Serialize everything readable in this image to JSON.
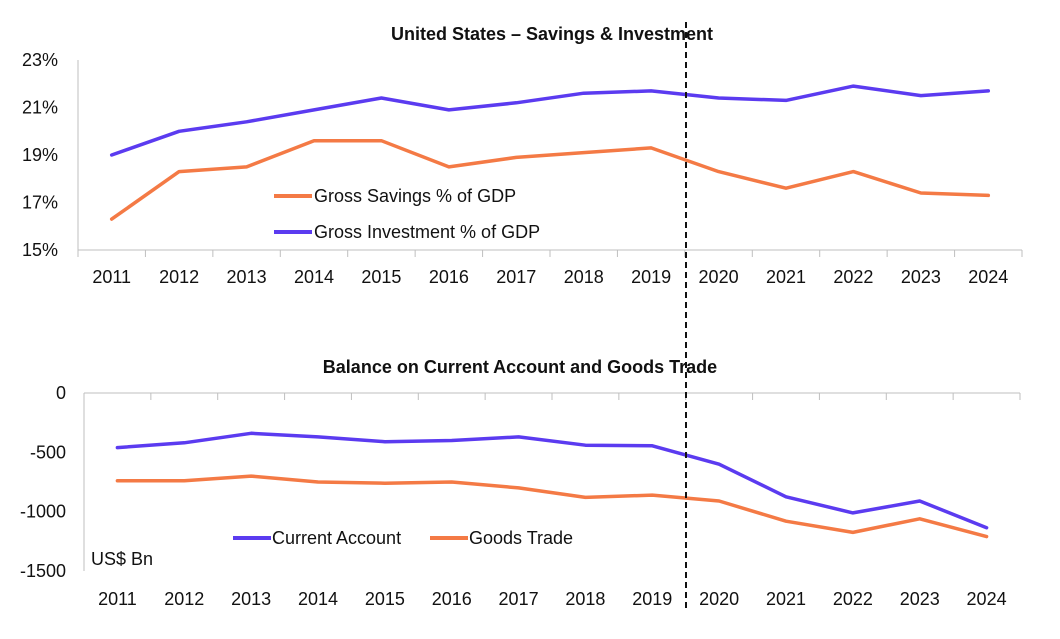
{
  "colors": {
    "savings": "#F47A45",
    "investment": "#5B3BF0",
    "divider": "#111111",
    "axis": "#BFBFBF"
  },
  "chart_data": [
    {
      "type": "line",
      "title": "United States – Savings & Investment",
      "x": [
        "2011",
        "2012",
        "2013",
        "2014",
        "2015",
        "2016",
        "2017",
        "2018",
        "2019",
        "2020",
        "2021",
        "2022",
        "2023",
        "2024"
      ],
      "ylim": [
        15,
        23
      ],
      "y_ticks": [
        15,
        17,
        19,
        21,
        23
      ],
      "y_tick_labels": [
        "15%",
        "17%",
        "19%",
        "21%",
        "23%"
      ],
      "grid": false,
      "legend_position": "center-left",
      "divider_after": "2019",
      "series": [
        {
          "name": "Gross Savings % of GDP",
          "color": "#F47A45",
          "values": [
            16.3,
            18.3,
            18.5,
            19.6,
            19.6,
            18.5,
            18.9,
            19.1,
            19.3,
            18.3,
            17.6,
            18.3,
            17.4,
            17.3
          ]
        },
        {
          "name": "Gross Investment % of GDP",
          "color": "#5B3BF0",
          "values": [
            19.0,
            20.0,
            20.4,
            20.9,
            21.4,
            20.9,
            21.2,
            21.6,
            21.7,
            21.4,
            21.3,
            21.9,
            21.5,
            21.7
          ]
        }
      ]
    },
    {
      "type": "line",
      "title": "Balance on Current Account and Goods Trade",
      "x": [
        "2011",
        "2012",
        "2013",
        "2014",
        "2015",
        "2016",
        "2017",
        "2018",
        "2019",
        "2020",
        "2021",
        "2022",
        "2023",
        "2024"
      ],
      "ylim": [
        -1500,
        0
      ],
      "y_ticks": [
        -1500,
        -1000,
        -500,
        0
      ],
      "y_tick_labels": [
        "-1500",
        "-1000",
        "-500",
        "0"
      ],
      "unit_label": "US$ Bn",
      "grid": false,
      "legend_position": "bottom-center",
      "divider_after": "2019",
      "series": [
        {
          "name": "Current Account",
          "color": "#5B3BF0",
          "values": [
            -460,
            -420,
            -340,
            -370,
            -410,
            -400,
            -370,
            -440,
            -445,
            -600,
            -875,
            -1010,
            -910,
            -1135
          ]
        },
        {
          "name": "Goods Trade",
          "color": "#F47A45",
          "values": [
            -740,
            -740,
            -700,
            -750,
            -760,
            -750,
            -800,
            -880,
            -860,
            -910,
            -1080,
            -1175,
            -1060,
            -1210
          ]
        }
      ]
    }
  ]
}
